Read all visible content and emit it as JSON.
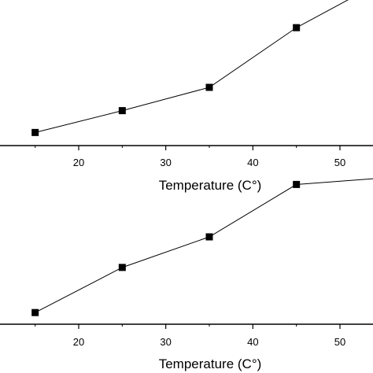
{
  "chart_data": [
    {
      "type": "line",
      "xlabel": "Temperature (C°)",
      "xlim": [
        10,
        54
      ],
      "ylim": [
        0,
        1
      ],
      "xticks": [
        20,
        30,
        40,
        50
      ],
      "grid": false,
      "series": [
        {
          "x": [
            15,
            25,
            35,
            45,
            54
          ],
          "y": [
            0.09,
            0.24,
            0.4,
            0.81,
            1.1
          ],
          "marker": "square",
          "color": "#000000"
        }
      ]
    },
    {
      "type": "line",
      "xlabel": "Temperature (C°)",
      "xlim": [
        10,
        54
      ],
      "ylim": [
        0,
        1
      ],
      "xticks": [
        20,
        30,
        40,
        50
      ],
      "grid": false,
      "series": [
        {
          "x": [
            15,
            25,
            35,
            45,
            54
          ],
          "y": [
            0.08,
            0.39,
            0.6,
            0.96,
            1.0
          ],
          "marker": "square",
          "color": "#000000"
        }
      ]
    }
  ]
}
